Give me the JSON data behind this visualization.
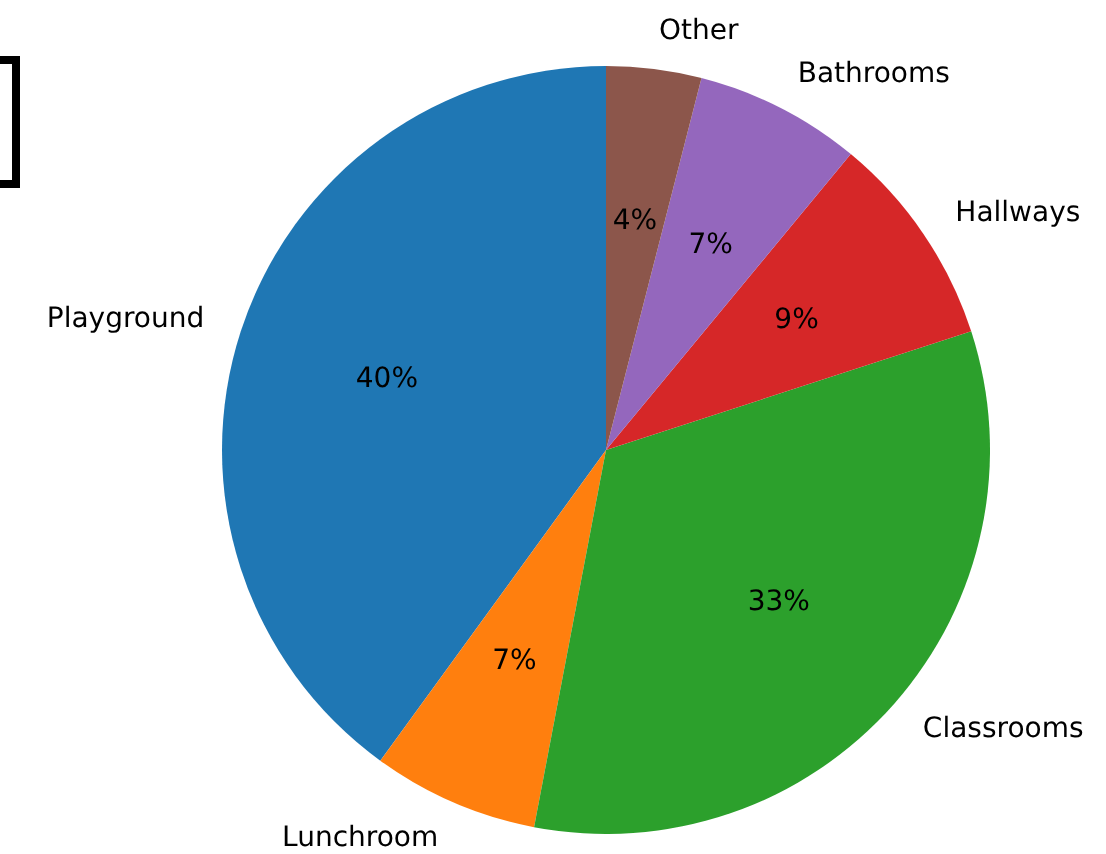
{
  "chart_data": {
    "type": "pie",
    "categories": [
      "Playground",
      "Lunchroom",
      "Classrooms",
      "Hallways",
      "Bathrooms",
      "Other"
    ],
    "values": [
      40,
      7,
      33,
      9,
      7,
      4
    ],
    "colors": [
      "#1f77b4",
      "#ff7f0e",
      "#2ca02c",
      "#d62728",
      "#9467bd",
      "#8c564b"
    ],
    "value_labels": [
      "40%",
      "7%",
      "33%",
      "9%",
      "7%",
      "4%"
    ],
    "legend": false
  }
}
